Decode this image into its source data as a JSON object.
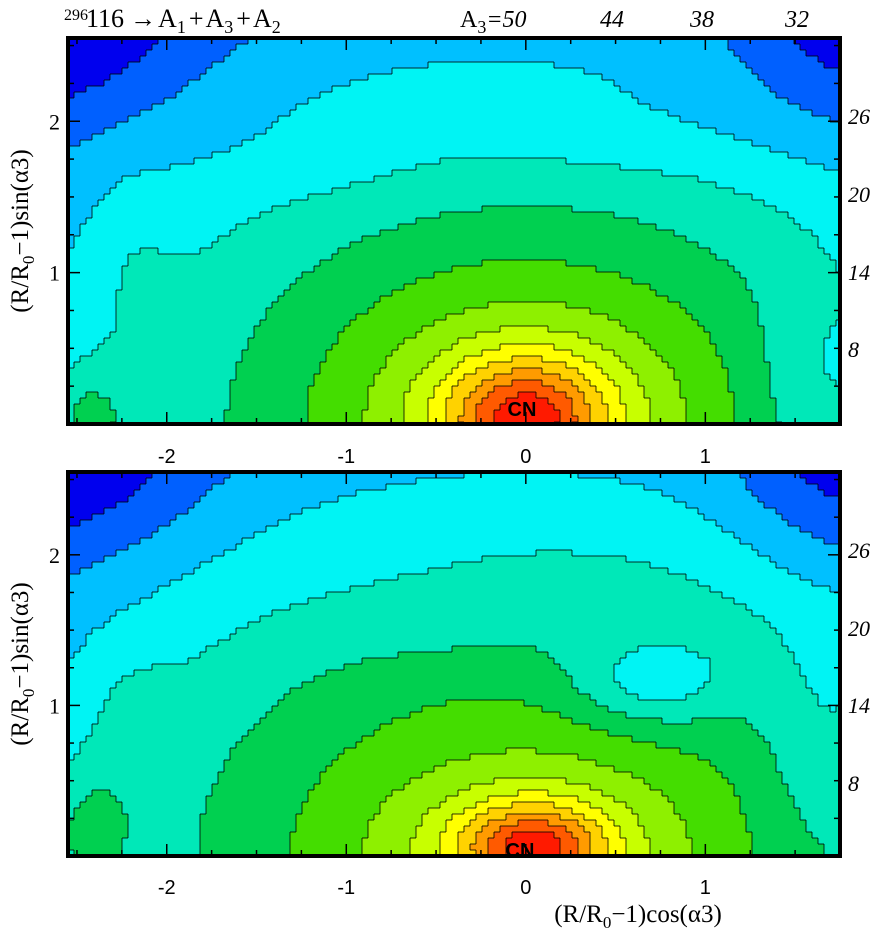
{
  "header": {
    "title_mass": "296",
    "title_main": "116",
    "title_arrow": "→",
    "title_f1": "A",
    "title_f1_sub": "1",
    "title_plus1": "+",
    "title_f2": "A",
    "title_f2_sub": "3",
    "title_plus2": "+",
    "title_f3": "A",
    "title_f3_sub": "2",
    "a3_label": "A",
    "a3_label_sub": "3",
    "a3_eq": "=50",
    "a3_ticks": [
      "44",
      "38",
      "32"
    ]
  },
  "right_labels": [
    "26",
    "20",
    "14",
    "8"
  ],
  "axes": {
    "y_label": "(R/R",
    "y_label_sub": "0",
    "y_label_rest": "−1)sin(α3)",
    "x_label": "(R/R",
    "x_label_sub": "0",
    "x_label_rest": "−1)cos(α3)"
  },
  "chart_data": [
    {
      "type": "heatmap",
      "subtype": "contour",
      "panel": "top",
      "xlim": [
        -2.55,
        1.75
      ],
      "ylim": [
        0.0,
        2.55
      ],
      "x_ticks": [
        -2,
        -1,
        0,
        1
      ],
      "x_tick_labels": [
        "-2",
        "-1",
        "0",
        "1"
      ],
      "y_ticks": [
        1,
        2
      ],
      "y_tick_labels": [
        "1",
        "2"
      ],
      "annotation": "CN",
      "annotation_at": [
        0.0,
        0.1
      ],
      "colormap": [
        "#ff1a00",
        "#ff5a00",
        "#ff9b00",
        "#ffd200",
        "#ffff00",
        "#c8ff00",
        "#8ef000",
        "#44dd00",
        "#00d050",
        "#00e8b8",
        "#00f4f4",
        "#00c0ff",
        "#0060ff",
        "#0000ee"
      ],
      "features": [
        {
          "kind": "max",
          "x": 0.0,
          "y": 0.05,
          "sx": 0.45,
          "sy": 0.4,
          "amp": 1.0
        },
        {
          "kind": "max",
          "x": 0.0,
          "y": 0.0,
          "sx": 1.0,
          "sy": 0.9,
          "amp": 0.35
        },
        {
          "kind": "max",
          "x": -2.45,
          "y": 0.05,
          "sx": 0.25,
          "sy": 0.35,
          "amp": 0.35
        },
        {
          "kind": "max",
          "x": -2.2,
          "y": 1.1,
          "sx": 0.25,
          "sy": 0.6,
          "amp": 0.12
        },
        {
          "kind": "min",
          "x": 0.5,
          "y": 1.95,
          "sx": 0.9,
          "sy": 0.35,
          "amp": 0.12
        },
        {
          "kind": "min",
          "x": -1.1,
          "y": 1.75,
          "sx": 0.7,
          "sy": 0.3,
          "amp": 0.08
        },
        {
          "kind": "min",
          "x": 1.6,
          "y": 0.3,
          "sx": 0.35,
          "sy": 0.6,
          "amp": 0.2
        }
      ]
    },
    {
      "type": "heatmap",
      "subtype": "contour",
      "panel": "bottom",
      "xlim": [
        -2.55,
        1.75
      ],
      "ylim": [
        0.0,
        2.55
      ],
      "x_ticks": [
        -2,
        -1,
        0,
        1
      ],
      "x_tick_labels": [
        "-2",
        "-1",
        "0",
        "1"
      ],
      "y_ticks": [
        1,
        2
      ],
      "y_tick_labels": [
        "1",
        "2"
      ],
      "annotation": "CN",
      "annotation_at": [
        0.05,
        0.1
      ],
      "colormap": [
        "#ff1a00",
        "#ff5a00",
        "#ff9b00",
        "#ffd200",
        "#ffff00",
        "#c8ff00",
        "#8ef000",
        "#44dd00",
        "#00d050",
        "#00e8b8",
        "#00f4f4",
        "#00c0ff",
        "#0060ff",
        "#0000ee"
      ],
      "features": [
        {
          "kind": "max",
          "x": 0.05,
          "y": 0.05,
          "sx": 0.4,
          "sy": 0.3,
          "amp": 0.9
        },
        {
          "kind": "max",
          "x": 0.0,
          "y": 0.05,
          "sx": 0.8,
          "sy": 0.45,
          "amp": 0.25
        },
        {
          "kind": "max",
          "x": -2.45,
          "y": 0.15,
          "sx": 0.25,
          "sy": 0.45,
          "amp": 0.3
        },
        {
          "kind": "max",
          "x": -2.2,
          "y": 0.9,
          "sx": 0.25,
          "sy": 0.5,
          "amp": 0.12
        },
        {
          "kind": "min",
          "x": 0.7,
          "y": 1.15,
          "sx": 0.45,
          "sy": 0.3,
          "amp": 0.4
        },
        {
          "kind": "min",
          "x": -0.3,
          "y": 1.6,
          "sx": 0.8,
          "sy": 0.35,
          "amp": 0.1
        },
        {
          "kind": "min",
          "x": 1.6,
          "y": 0.7,
          "sx": 0.3,
          "sy": 0.7,
          "amp": 0.15
        }
      ]
    }
  ]
}
